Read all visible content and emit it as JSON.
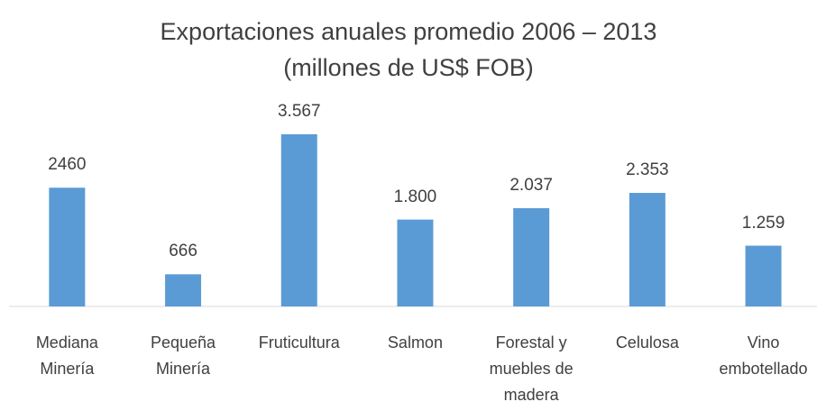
{
  "chart_data": {
    "type": "bar",
    "title": "Exportaciones anuales promedio 2006 – 2013",
    "subtitle": "(millones de US$ FOB)",
    "categories": [
      "Mediana\nMinería",
      "Pequeña\nMinería",
      "Fruticultura",
      "Salmon",
      "Forestal y\nmuebles de\nmadera",
      "Celulosa",
      "Vino\nembotellado"
    ],
    "values": [
      2460,
      666,
      3567,
      1800,
      2037,
      2353,
      1259
    ],
    "value_labels": [
      "2460",
      "666",
      "3.567",
      "1.800",
      "2.037",
      "2.353",
      "1.259"
    ],
    "color": "#5b9bd5"
  }
}
